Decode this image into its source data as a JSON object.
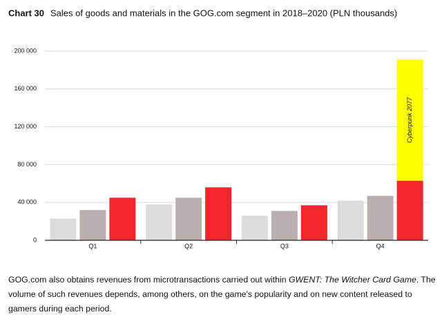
{
  "chart_data": {
    "type": "bar",
    "title_label": "Chart 30",
    "title": "Sales of goods and materials in the GOG.com segment in 2018–2020 (PLN thousands)",
    "categories": [
      "Q1",
      "Q2",
      "Q3",
      "Q4"
    ],
    "series": [
      {
        "color": "#dcdcdc",
        "values": [
          23000,
          38000,
          26000,
          42000
        ]
      },
      {
        "color": "#b9afaf",
        "values": [
          32000,
          45000,
          31000,
          47000
        ]
      },
      {
        "color": "#f3262d",
        "values": [
          45000,
          56000,
          37000,
          63000
        ]
      },
      {
        "name": "Cyberpunk 2077",
        "color": "#ffff00",
        "stacked": true,
        "values": [
          null,
          null,
          null,
          128000
        ]
      }
    ],
    "ylim": [
      0,
      200000
    ],
    "yticks": [
      0,
      {
        "value": 40000,
        "label": "40 000"
      },
      {
        "value": 80000,
        "label": "80 000"
      },
      {
        "value": 120000,
        "label": "120 000"
      },
      {
        "value": 160000,
        "label": "160 000"
      },
      {
        "value": 200000,
        "label": "200 000"
      }
    ],
    "grid": true
  },
  "footnote": {
    "before": "GOG.com also obtains revenues from microtransactions carried out within ",
    "italic": "GWENT: The Witcher Card Game",
    "after": ". The volume of such revenues depends, among others, on the game's popularity and on new content released to gamers during each period."
  }
}
